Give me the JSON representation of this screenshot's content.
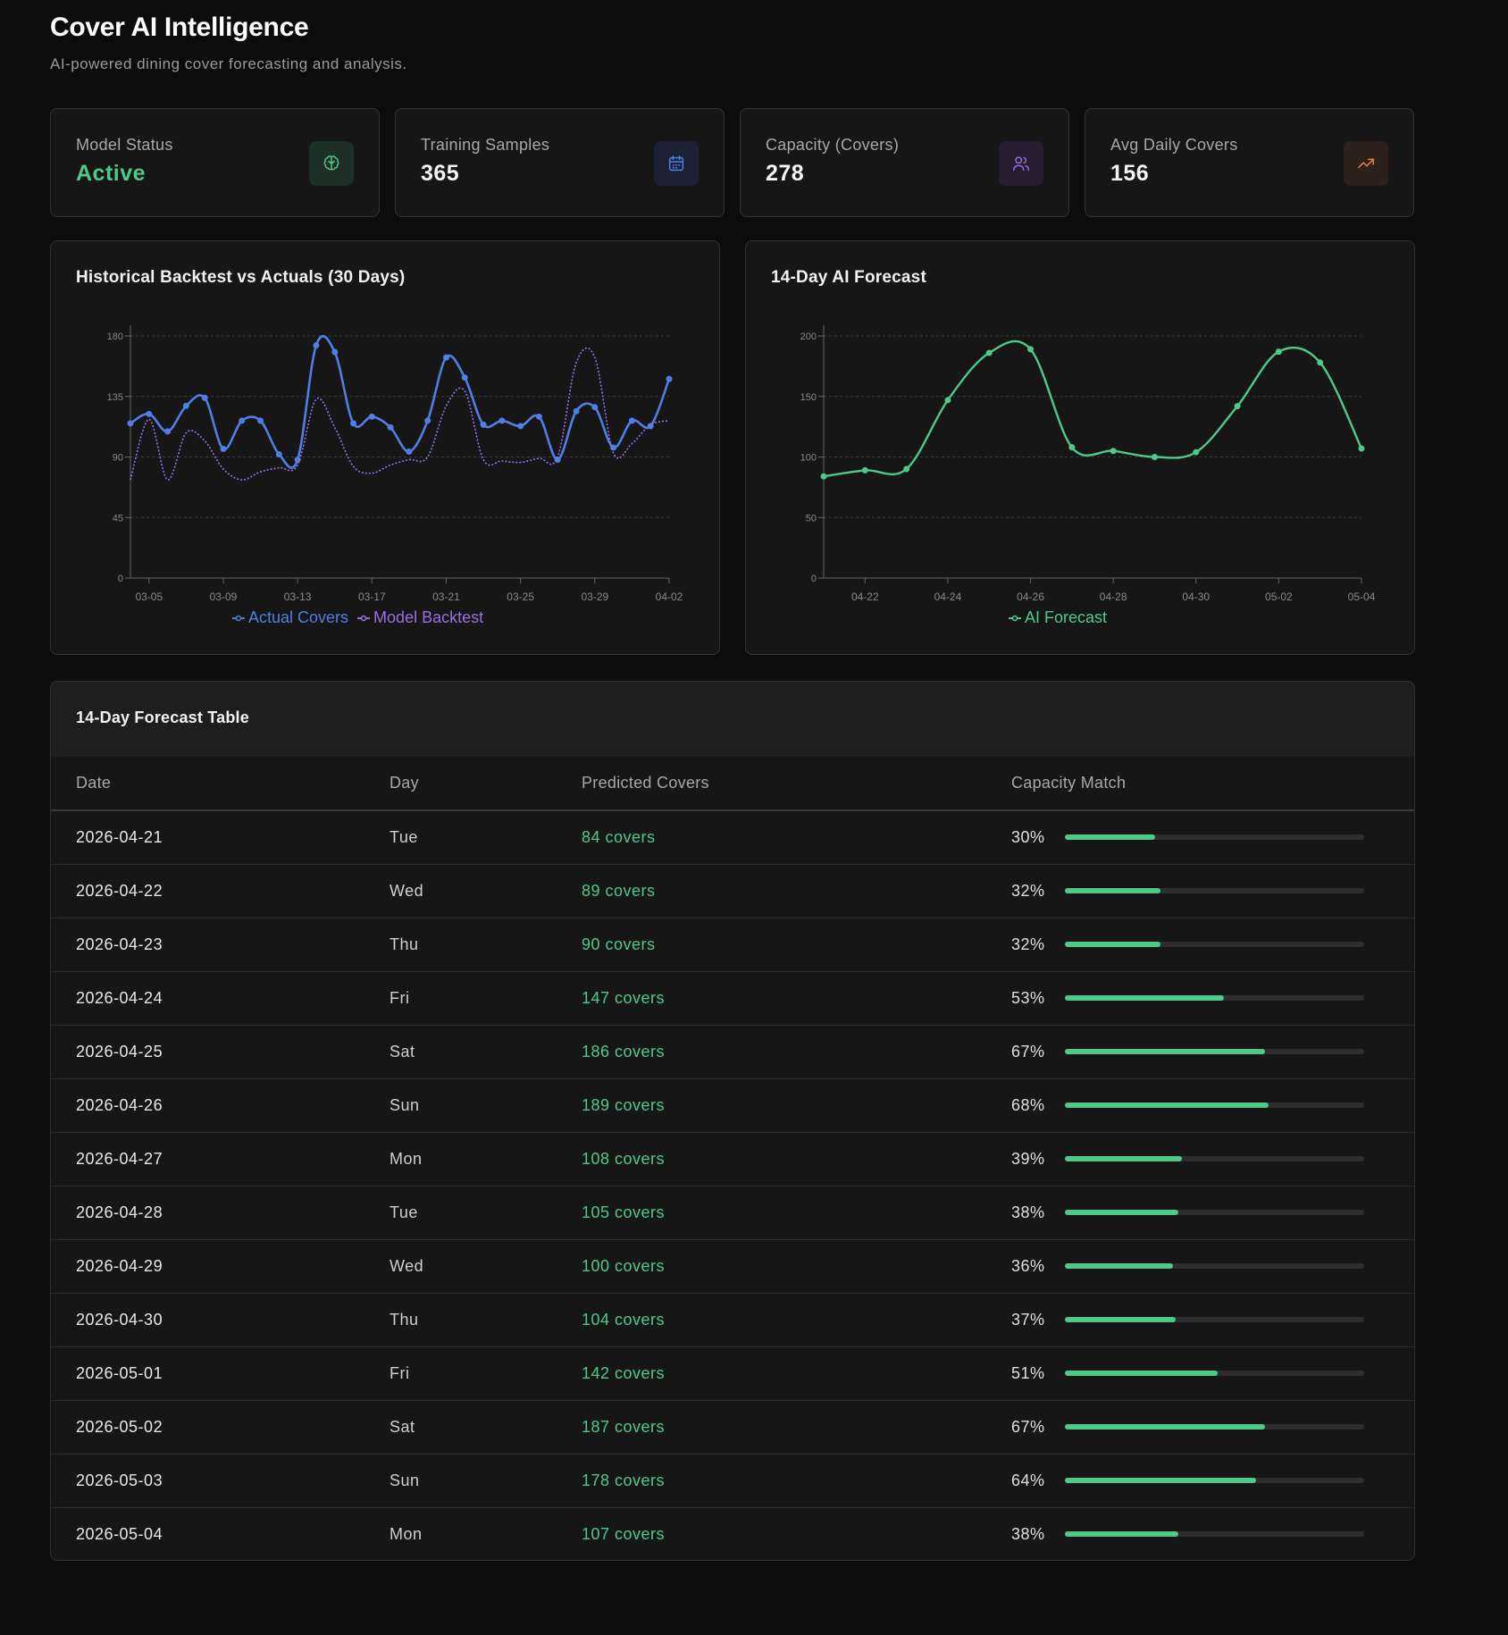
{
  "header": {
    "title": "Cover AI Intelligence",
    "subtitle": "AI-powered dining cover forecasting and analysis."
  },
  "kpis": [
    {
      "label": "Model Status",
      "value": "Active",
      "icon": "brain-icon",
      "accent": "#4ec98a"
    },
    {
      "label": "Training Samples",
      "value": "365",
      "icon": "calendar-icon",
      "accent": "#4f7fe6"
    },
    {
      "label": "Capacity (Covers)",
      "value": "278",
      "icon": "users-icon",
      "accent": "#9b6ee6"
    },
    {
      "label": "Avg Daily Covers",
      "value": "156",
      "icon": "trending-up-icon",
      "accent": "#e0854a"
    }
  ],
  "backtest": {
    "title": "Historical Backtest vs Actuals (30 Days)",
    "legend": [
      "Actual Covers",
      "Model Backtest"
    ]
  },
  "forecast": {
    "title": "14-Day AI Forecast",
    "legend": [
      "AI Forecast"
    ]
  },
  "colors": {
    "actual": "#4f7fe6",
    "backtest": "#9b6ee6",
    "forecast": "#4ec98a"
  },
  "chart_data": [
    {
      "type": "line",
      "title": "Historical Backtest vs Actuals (30 Days)",
      "x": [
        "03-04",
        "03-05",
        "03-06",
        "03-07",
        "03-08",
        "03-09",
        "03-10",
        "03-11",
        "03-12",
        "03-13",
        "03-14",
        "03-15",
        "03-16",
        "03-17",
        "03-18",
        "03-19",
        "03-20",
        "03-21",
        "03-22",
        "03-23",
        "03-24",
        "03-25",
        "03-26",
        "03-27",
        "03-28",
        "03-29",
        "03-30",
        "03-31",
        "04-01",
        "04-02"
      ],
      "x_ticks": [
        "03-05",
        "03-09",
        "03-13",
        "03-17",
        "03-21",
        "03-25",
        "03-29",
        "04-02"
      ],
      "ylim": [
        0,
        180
      ],
      "y_ticks": [
        0,
        45,
        90,
        135,
        180
      ],
      "grid": true,
      "legend_position": "bottom",
      "series": [
        {
          "name": "Actual Covers",
          "values": [
            115,
            122,
            109,
            128,
            134,
            96,
            117,
            117,
            92,
            88,
            173,
            168,
            115,
            120,
            112,
            94,
            117,
            164,
            149,
            114,
            117,
            113,
            120,
            88,
            124,
            127,
            97,
            117,
            113,
            148
          ]
        },
        {
          "name": "Model Backtest",
          "values": [
            73,
            118,
            73,
            108,
            102,
            81,
            73,
            79,
            82,
            84,
            133,
            112,
            83,
            78,
            84,
            88,
            90,
            128,
            139,
            88,
            87,
            86,
            89,
            90,
            160,
            164,
            93,
            100,
            114,
            117
          ]
        }
      ]
    },
    {
      "type": "line",
      "title": "14-Day AI Forecast",
      "x": [
        "04-21",
        "04-22",
        "04-23",
        "04-24",
        "04-25",
        "04-26",
        "04-27",
        "04-28",
        "04-29",
        "04-30",
        "05-01",
        "05-02",
        "05-03",
        "05-04"
      ],
      "x_ticks": [
        "04-22",
        "04-24",
        "04-26",
        "04-28",
        "04-30",
        "05-02",
        "05-04"
      ],
      "ylim": [
        0,
        200
      ],
      "y_ticks": [
        0,
        50,
        100,
        150,
        200
      ],
      "grid": true,
      "legend_position": "bottom",
      "series": [
        {
          "name": "AI Forecast",
          "values": [
            84,
            89,
            90,
            147,
            186,
            189,
            108,
            105,
            100,
            104,
            142,
            187,
            178,
            107
          ]
        }
      ]
    }
  ],
  "table": {
    "title": "14-Day Forecast Table",
    "columns": [
      "Date",
      "Day",
      "Predicted Covers",
      "Capacity Match"
    ],
    "rows": [
      {
        "date": "2026-04-21",
        "day": "Tue",
        "pred": "84 covers",
        "cap": "30%",
        "frac": 0.3
      },
      {
        "date": "2026-04-22",
        "day": "Wed",
        "pred": "89 covers",
        "cap": "32%",
        "frac": 0.32
      },
      {
        "date": "2026-04-23",
        "day": "Thu",
        "pred": "90 covers",
        "cap": "32%",
        "frac": 0.32
      },
      {
        "date": "2026-04-24",
        "day": "Fri",
        "pred": "147 covers",
        "cap": "53%",
        "frac": 0.53
      },
      {
        "date": "2026-04-25",
        "day": "Sat",
        "pred": "186 covers",
        "cap": "67%",
        "frac": 0.67
      },
      {
        "date": "2026-04-26",
        "day": "Sun",
        "pred": "189 covers",
        "cap": "68%",
        "frac": 0.68
      },
      {
        "date": "2026-04-27",
        "day": "Mon",
        "pred": "108 covers",
        "cap": "39%",
        "frac": 0.39
      },
      {
        "date": "2026-04-28",
        "day": "Tue",
        "pred": "105 covers",
        "cap": "38%",
        "frac": 0.38
      },
      {
        "date": "2026-04-29",
        "day": "Wed",
        "pred": "100 covers",
        "cap": "36%",
        "frac": 0.36
      },
      {
        "date": "2026-04-30",
        "day": "Thu",
        "pred": "104 covers",
        "cap": "37%",
        "frac": 0.37
      },
      {
        "date": "2026-05-01",
        "day": "Fri",
        "pred": "142 covers",
        "cap": "51%",
        "frac": 0.51
      },
      {
        "date": "2026-05-02",
        "day": "Sat",
        "pred": "187 covers",
        "cap": "67%",
        "frac": 0.67
      },
      {
        "date": "2026-05-03",
        "day": "Sun",
        "pred": "178 covers",
        "cap": "64%",
        "frac": 0.64
      },
      {
        "date": "2026-05-04",
        "day": "Mon",
        "pred": "107 covers",
        "cap": "38%",
        "frac": 0.38
      }
    ]
  }
}
